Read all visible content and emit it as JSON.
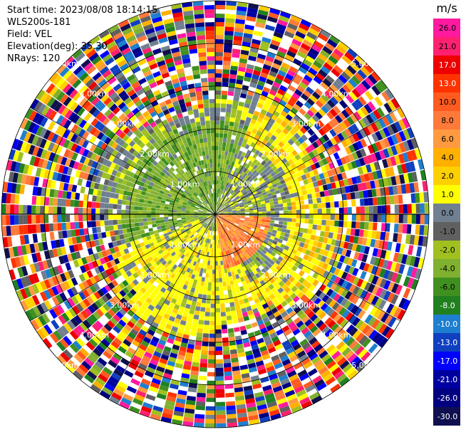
{
  "header": {
    "start_time": "Start time: 2023/08/08 18:14:15",
    "instrument": "WLS200s-181",
    "field": "Field: VEL",
    "elevation": "Elevation(deg): 35.30",
    "nrays": "NRays: 120"
  },
  "colorbar": {
    "unit": "m/s",
    "ticks": [
      "26.0",
      "21.0",
      "17.0",
      "13.0",
      "10.0",
      "8.0",
      "6.0",
      "4.0",
      "2.0",
      "1.0",
      "0.0",
      "-1.0",
      "-2.0",
      "-4.0",
      "-6.0",
      "-8.0",
      "-10.0",
      "-13.0",
      "-17.0",
      "-21.0",
      "-26.0",
      "-30.0"
    ],
    "colors": [
      "#ff1aa0",
      "#ff2070",
      "#ee0000",
      "#ff3300",
      "#ff5a1f",
      "#ff7a3a",
      "#ff9a40",
      "#ffb000",
      "#ffd000",
      "#ffff00",
      "#708090",
      "#606060",
      "#a0c020",
      "#80b030",
      "#409020",
      "#208020",
      "#1e7fd0",
      "#1040c0",
      "#0000ff",
      "#0000a0",
      "#000080",
      "#101050"
    ]
  },
  "chart_data": {
    "type": "heatmap",
    "projection": "polar PPI",
    "nrays": 120,
    "elevation_deg": 35.3,
    "field": "VEL",
    "unit": "m/s",
    "range_ring_labels": [
      "1.00km",
      "2.00km",
      "3.00km",
      "4.00km",
      "5.00km"
    ],
    "range_rings_km": [
      1,
      2,
      3,
      4,
      5
    ],
    "max_range_km": 5,
    "sectors": [
      {
        "direction": "north-west near",
        "range_km": [
          0,
          2
        ],
        "dominant_value_ms": -4.0
      },
      {
        "direction": "south-east near",
        "range_km": [
          0,
          1.2
        ],
        "dominant_value_ms": 8.0
      },
      {
        "direction": "south near",
        "range_km": [
          0.5,
          2
        ],
        "dominant_value_ms": 2.0
      },
      {
        "direction": "east mid",
        "range_km": [
          2,
          3
        ],
        "dominant_value_ms": 2.0
      },
      {
        "direction": "all outer",
        "range_km": [
          3,
          5
        ],
        "dominant_value_ms": "noise"
      }
    ]
  }
}
